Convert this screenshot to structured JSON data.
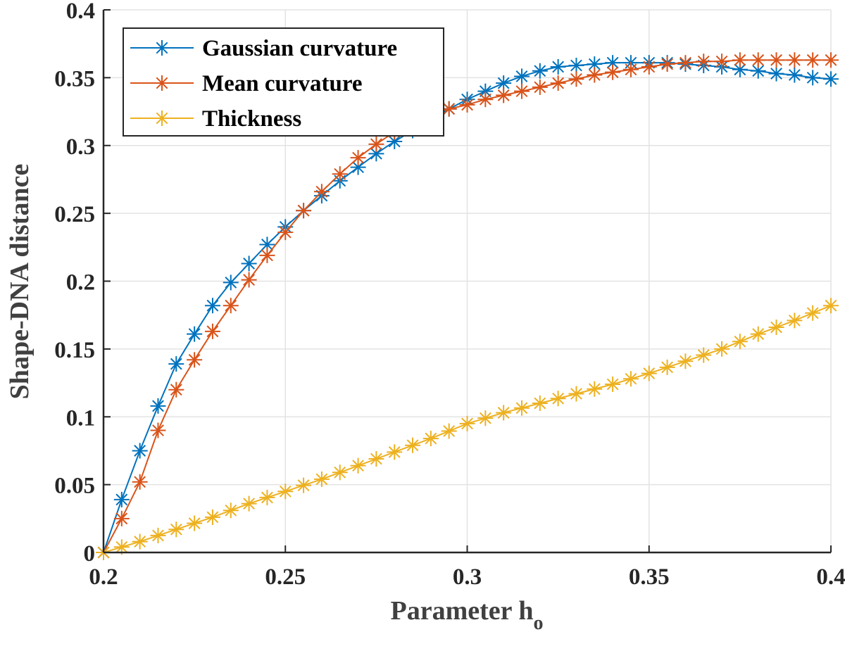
{
  "chart_data": {
    "type": "line",
    "title": "",
    "xlabel": "Parameter h",
    "xlabel_subscript": "o",
    "ylabel": "Shape-DNA distance",
    "xlim": [
      0.2,
      0.4
    ],
    "ylim": [
      0,
      0.4
    ],
    "xticks": [
      "0.2",
      "0.25",
      "0.3",
      "0.35",
      "0.4"
    ],
    "yticks": [
      "0",
      "0.05",
      "0.1",
      "0.15",
      "0.2",
      "0.25",
      "0.3",
      "0.35",
      "0.4"
    ],
    "grid": true,
    "legend_placement": "top-left",
    "marker": "asterisk",
    "x": [
      0.2,
      0.205,
      0.21,
      0.215,
      0.22,
      0.225,
      0.23,
      0.235,
      0.24,
      0.245,
      0.25,
      0.255,
      0.26,
      0.265,
      0.27,
      0.275,
      0.28,
      0.285,
      0.29,
      0.295,
      0.3,
      0.305,
      0.31,
      0.315,
      0.32,
      0.325,
      0.33,
      0.335,
      0.34,
      0.345,
      0.35,
      0.355,
      0.36,
      0.365,
      0.37,
      0.375,
      0.38,
      0.385,
      0.39,
      0.395,
      0.4
    ],
    "series": [
      {
        "name": "Gaussian curvature",
        "color": "#0072BD",
        "values": [
          0,
          0.039,
          0.075,
          0.108,
          0.139,
          0.161,
          0.182,
          0.199,
          0.213,
          0.227,
          0.24,
          0.252,
          0.263,
          0.274,
          0.284,
          0.294,
          0.303,
          0.311,
          0.319,
          0.327,
          0.334,
          0.34,
          0.346,
          0.351,
          0.355,
          0.358,
          0.359,
          0.36,
          0.361,
          0.361,
          0.361,
          0.361,
          0.36,
          0.359,
          0.358,
          0.356,
          0.355,
          0.353,
          0.352,
          0.35,
          0.349
        ]
      },
      {
        "name": "Mean curvature",
        "color": "#D95319",
        "values": [
          0,
          0.025,
          0.052,
          0.09,
          0.12,
          0.142,
          0.163,
          0.182,
          0.201,
          0.219,
          0.236,
          0.252,
          0.266,
          0.279,
          0.291,
          0.301,
          0.31,
          0.317,
          0.323,
          0.327,
          0.33,
          0.334,
          0.337,
          0.34,
          0.343,
          0.346,
          0.349,
          0.352,
          0.354,
          0.356,
          0.358,
          0.36,
          0.361,
          0.362,
          0.362,
          0.363,
          0.363,
          0.363,
          0.363,
          0.363,
          0.363
        ]
      },
      {
        "name": "Thickness",
        "color": "#EDB120",
        "values": [
          0,
          0.004,
          0.008,
          0.0125,
          0.017,
          0.0215,
          0.026,
          0.031,
          0.036,
          0.0405,
          0.045,
          0.0495,
          0.054,
          0.059,
          0.064,
          0.069,
          0.074,
          0.079,
          0.084,
          0.0895,
          0.095,
          0.099,
          0.103,
          0.1065,
          0.11,
          0.1135,
          0.117,
          0.1205,
          0.124,
          0.128,
          0.132,
          0.1365,
          0.141,
          0.1455,
          0.15,
          0.1555,
          0.161,
          0.166,
          0.171,
          0.1765,
          0.182
        ]
      }
    ]
  }
}
